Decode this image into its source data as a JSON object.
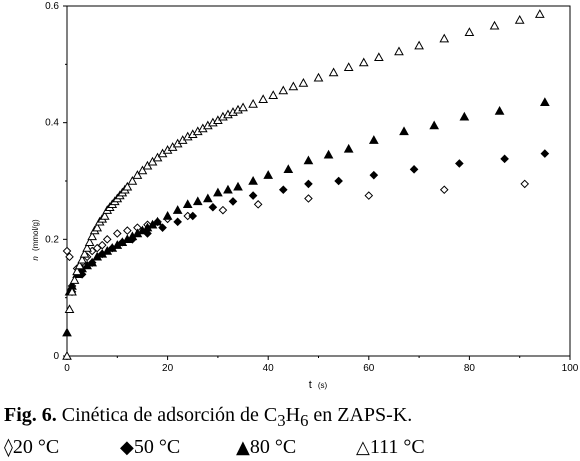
{
  "chart_data": {
    "type": "scatter",
    "xlabel": "t",
    "xlabel_unit": "(s)",
    "ylabel": "n",
    "ylabel_unit": "(mmol/g)",
    "xlim": [
      0,
      100
    ],
    "ylim": [
      0,
      0.6
    ],
    "x_ticks": [
      "0",
      "20",
      "40",
      "60",
      "80",
      "100"
    ],
    "y_ticks": [
      "0",
      "0.2",
      "0.4",
      "0.6"
    ],
    "grid": false,
    "series": [
      {
        "name": "20 °C",
        "marker": "diamond-open",
        "x": [
          0,
          0.5,
          1,
          2,
          3,
          4,
          5,
          6,
          7,
          8,
          10,
          12,
          14,
          16,
          18,
          20,
          24,
          31,
          38,
          48,
          60,
          75,
          91
        ],
        "y": [
          0.18,
          0.17,
          0.12,
          0.15,
          0.16,
          0.17,
          0.18,
          0.185,
          0.19,
          0.2,
          0.21,
          0.215,
          0.22,
          0.225,
          0.23,
          0.235,
          0.24,
          0.25,
          0.26,
          0.27,
          0.275,
          0.285,
          0.295
        ]
      },
      {
        "name": "50 °C",
        "marker": "diamond-filled",
        "x": [
          1,
          3,
          5,
          7,
          9,
          11,
          13,
          16,
          19,
          22,
          25,
          29,
          33,
          37,
          43,
          48,
          54,
          61,
          69,
          78,
          87,
          95
        ],
        "y": [
          0.11,
          0.14,
          0.16,
          0.175,
          0.185,
          0.195,
          0.2,
          0.21,
          0.22,
          0.23,
          0.24,
          0.255,
          0.265,
          0.275,
          0.285,
          0.295,
          0.3,
          0.31,
          0.32,
          0.33,
          0.338,
          0.347
        ]
      },
      {
        "name": "80 °C",
        "marker": "triangle-filled",
        "x": [
          0,
          0.5,
          1,
          2,
          3,
          4,
          5,
          6,
          7,
          8,
          9,
          10,
          11,
          12,
          13,
          14,
          15,
          16,
          17,
          18,
          20,
          22,
          24,
          26,
          28,
          30,
          32,
          34,
          37,
          40,
          44,
          48,
          52,
          56,
          61,
          67,
          73,
          79,
          86,
          95
        ],
        "y": [
          0.04,
          0.11,
          0.12,
          0.14,
          0.15,
          0.155,
          0.16,
          0.17,
          0.175,
          0.18,
          0.185,
          0.19,
          0.195,
          0.2,
          0.205,
          0.21,
          0.215,
          0.22,
          0.225,
          0.23,
          0.24,
          0.25,
          0.26,
          0.265,
          0.27,
          0.28,
          0.285,
          0.29,
          0.3,
          0.31,
          0.32,
          0.335,
          0.345,
          0.355,
          0.37,
          0.385,
          0.395,
          0.41,
          0.42,
          0.435
        ]
      },
      {
        "name": "111 °C",
        "marker": "triangle-open",
        "x": [
          0,
          0.5,
          1,
          1.5,
          2,
          2.5,
          3,
          3.5,
          4,
          4.5,
          5,
          5.5,
          6,
          6.5,
          7,
          7.5,
          8,
          8.5,
          9,
          9.5,
          10,
          10.5,
          11,
          11.5,
          12,
          13,
          14,
          15,
          16,
          17,
          18,
          19,
          20,
          21,
          22,
          23,
          24,
          25,
          26,
          27,
          28,
          29,
          30,
          31,
          32,
          33,
          34,
          35,
          37,
          39,
          41,
          43,
          45,
          47,
          50,
          53,
          56,
          59,
          62,
          66,
          70,
          75,
          80,
          85,
          90,
          94
        ],
        "y": [
          0.0,
          0.08,
          0.11,
          0.13,
          0.145,
          0.155,
          0.165,
          0.175,
          0.185,
          0.195,
          0.205,
          0.215,
          0.22,
          0.23,
          0.235,
          0.24,
          0.25,
          0.255,
          0.26,
          0.265,
          0.27,
          0.275,
          0.28,
          0.285,
          0.29,
          0.3,
          0.31,
          0.318,
          0.326,
          0.333,
          0.34,
          0.347,
          0.353,
          0.358,
          0.364,
          0.37,
          0.376,
          0.38,
          0.385,
          0.39,
          0.395,
          0.4,
          0.404,
          0.41,
          0.414,
          0.418,
          0.422,
          0.426,
          0.432,
          0.44,
          0.447,
          0.455,
          0.462,
          0.468,
          0.477,
          0.486,
          0.495,
          0.503,
          0.512,
          0.522,
          0.532,
          0.544,
          0.555,
          0.566,
          0.576,
          0.586
        ]
      }
    ]
  },
  "caption": {
    "fig_label": "Fig. 6.",
    "text_before": " Cinética de adsorción de C",
    "sub_1": "3",
    "mid": "H",
    "sub_2": "6",
    "text_after": " en ZAPS-K."
  },
  "legend": [
    {
      "symbol": "◊",
      "label": "20 °C"
    },
    {
      "symbol": "◆",
      "label": "50 °C"
    },
    {
      "symbol": "▲",
      "label": "80 °C"
    },
    {
      "symbol": "△",
      "label": "111 °C"
    }
  ]
}
